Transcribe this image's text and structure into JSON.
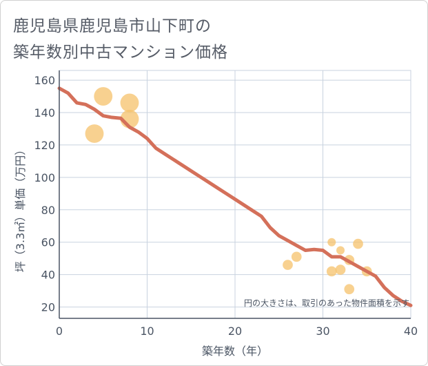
{
  "title_line1": "鹿児島県鹿児島市山下町の",
  "title_line2": "築年数別中古マンション価格",
  "chart_data": {
    "type": "scatter",
    "xlabel": "築年数（年）",
    "ylabel": "坪（3.3㎡）単価（万円）",
    "xlim": [
      0,
      40
    ],
    "ylim": [
      13,
      166
    ],
    "xticks": [
      0,
      10,
      20,
      30,
      40
    ],
    "yticks": [
      20,
      40,
      60,
      80,
      100,
      120,
      140,
      160
    ],
    "grid": true,
    "note": "円の大きさは、取引のあった物件面積を示す",
    "colors": {
      "bubble": "#f5c26b",
      "line": "#d4705a",
      "grid": "#c8d2df",
      "axis": "#4a5463"
    },
    "bubbles": [
      {
        "x": 4,
        "y": 127,
        "size": 5
      },
      {
        "x": 5,
        "y": 150,
        "size": 5
      },
      {
        "x": 8,
        "y": 146,
        "size": 5
      },
      {
        "x": 8,
        "y": 136,
        "size": 5
      },
      {
        "x": 26,
        "y": 46,
        "size": 1.5
      },
      {
        "x": 27,
        "y": 51,
        "size": 1.5
      },
      {
        "x": 31,
        "y": 60,
        "size": 1
      },
      {
        "x": 31,
        "y": 42,
        "size": 1.5
      },
      {
        "x": 32,
        "y": 55,
        "size": 1
      },
      {
        "x": 32,
        "y": 43,
        "size": 1.5
      },
      {
        "x": 33,
        "y": 49,
        "size": 1.5
      },
      {
        "x": 33,
        "y": 31,
        "size": 1.5
      },
      {
        "x": 34,
        "y": 59,
        "size": 1.5
      },
      {
        "x": 35,
        "y": 42,
        "size": 1.5
      }
    ],
    "trend": {
      "name": "trend",
      "x": [
        0,
        1,
        2,
        3,
        4,
        5,
        6,
        7,
        8,
        9,
        10,
        11,
        12,
        13,
        14,
        15,
        16,
        17,
        18,
        19,
        20,
        21,
        22,
        23,
        24,
        25,
        26,
        27,
        28,
        29,
        30,
        31,
        32,
        33,
        34,
        35,
        36,
        37,
        38,
        39,
        40
      ],
      "y": [
        155,
        152,
        146,
        145,
        142,
        138,
        137,
        136.5,
        131,
        128,
        124,
        118,
        114.5,
        111,
        107.5,
        104,
        100.5,
        97,
        93.5,
        90,
        86.5,
        83,
        79.5,
        76,
        69,
        64,
        61,
        58,
        55,
        55.5,
        55,
        51,
        51,
        48,
        45,
        42,
        39,
        32,
        27,
        23.5,
        21
      ]
    }
  }
}
